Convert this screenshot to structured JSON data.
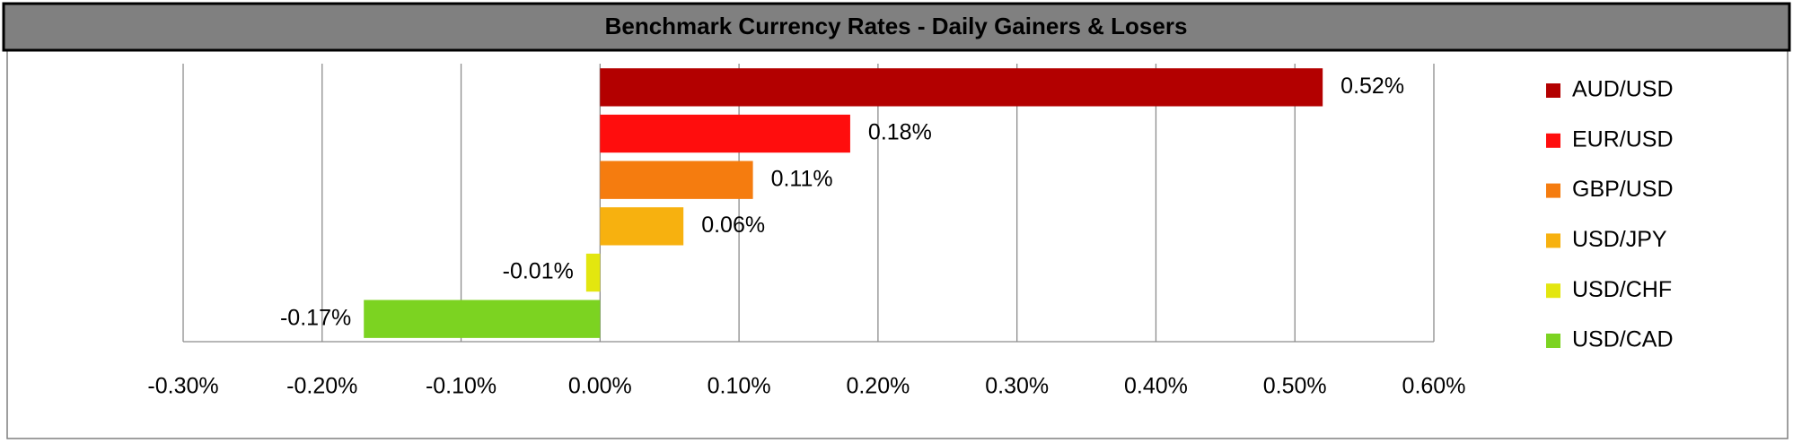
{
  "chart_data": {
    "type": "bar",
    "orientation": "horizontal",
    "title": "Benchmark Currency Rates - Daily Gainers & Losers",
    "categories": [
      "AUD/USD",
      "EUR/USD",
      "GBP/USD",
      "USD/JPY",
      "USD/CHF",
      "USD/CAD"
    ],
    "values": [
      0.52,
      0.18,
      0.11,
      0.06,
      -0.01,
      -0.17
    ],
    "value_labels": [
      "0.52%",
      "0.18%",
      "0.11%",
      "0.06%",
      "-0.01%",
      "-0.17%"
    ],
    "colors": [
      "#b30000",
      "#ff0d0d",
      "#f57c0f",
      "#f7b10f",
      "#e3e60f",
      "#7cd321"
    ],
    "xlim": [
      -0.3,
      0.6
    ],
    "xticks": [
      {
        "value": -0.3,
        "label": "-0.30%"
      },
      {
        "value": -0.2,
        "label": "-0.20%"
      },
      {
        "value": -0.1,
        "label": "-0.10%"
      },
      {
        "value": 0,
        "label": "0.00%"
      },
      {
        "value": 0.1,
        "label": "0.10%"
      },
      {
        "value": 0.2,
        "label": "0.20%"
      },
      {
        "value": 0.3,
        "label": "0.30%"
      },
      {
        "value": 0.4,
        "label": "0.40%"
      },
      {
        "value": 0.5,
        "label": "0.50%"
      },
      {
        "value": 0.6,
        "label": "0.60%"
      }
    ],
    "grid": true,
    "legend": "right"
  }
}
